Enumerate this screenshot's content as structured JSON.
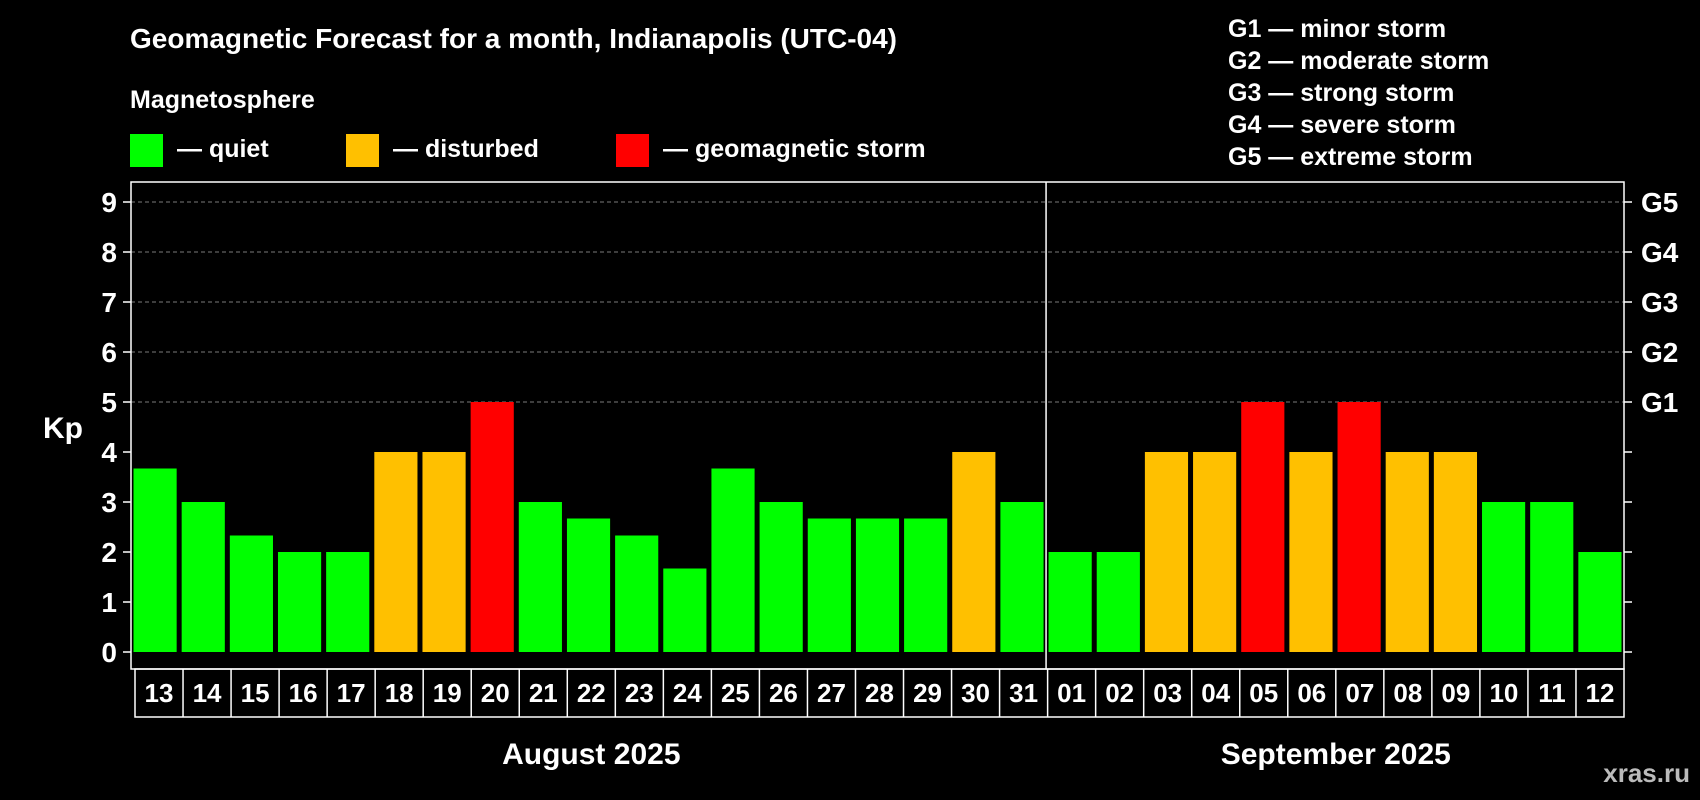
{
  "title": "Geomagnetic Forecast for a month, Indianapolis (UTC-04)",
  "legend": {
    "heading": "Magnetosphere",
    "items": [
      {
        "label": "— quiet",
        "color": "#00ff00"
      },
      {
        "label": "— disturbed",
        "color": "#ffc000"
      },
      {
        "label": "— geomagnetic storm",
        "color": "#ff0000"
      }
    ]
  },
  "storm_scale": [
    "G1 — minor storm",
    "G2 — moderate storm",
    "G3 — strong storm",
    "G4 — severe storm",
    "G5 — extreme storm"
  ],
  "watermark": "xras.ru",
  "chart_data": {
    "type": "bar",
    "ylabel": "Kp",
    "ylim": [
      0,
      9
    ],
    "yticks": [
      "0",
      "1",
      "2",
      "3",
      "4",
      "5",
      "6",
      "7",
      "8",
      "9"
    ],
    "right_ticks": [
      {
        "kp": 5,
        "label": "G1"
      },
      {
        "kp": 6,
        "label": "G2"
      },
      {
        "kp": 7,
        "label": "G3"
      },
      {
        "kp": 8,
        "label": "G4"
      },
      {
        "kp": 9,
        "label": "G5"
      }
    ],
    "grid_levels": [
      5,
      6,
      7,
      8,
      9
    ],
    "categories": [
      "13",
      "14",
      "15",
      "16",
      "17",
      "18",
      "19",
      "20",
      "21",
      "22",
      "23",
      "24",
      "25",
      "26",
      "27",
      "28",
      "29",
      "30",
      "31",
      "01",
      "02",
      "03",
      "04",
      "05",
      "06",
      "07",
      "08",
      "09",
      "10",
      "11",
      "12"
    ],
    "values": [
      3.67,
      3,
      2.33,
      2,
      2,
      4,
      4,
      5,
      3,
      2.67,
      2.33,
      1.67,
      3.67,
      3,
      2.67,
      2.67,
      2.67,
      4,
      3,
      2,
      2,
      4,
      4,
      5,
      4,
      5,
      4,
      4,
      3,
      3,
      2
    ],
    "colors": [
      "#00ff00",
      "#00ff00",
      "#00ff00",
      "#00ff00",
      "#00ff00",
      "#ffc000",
      "#ffc000",
      "#ff0000",
      "#00ff00",
      "#00ff00",
      "#00ff00",
      "#00ff00",
      "#00ff00",
      "#00ff00",
      "#00ff00",
      "#00ff00",
      "#00ff00",
      "#ffc000",
      "#00ff00",
      "#00ff00",
      "#00ff00",
      "#ffc000",
      "#ffc000",
      "#ff0000",
      "#ffc000",
      "#ff0000",
      "#ffc000",
      "#ffc000",
      "#00ff00",
      "#00ff00",
      "#00ff00"
    ],
    "months": [
      {
        "label": "August 2025",
        "count": 19
      },
      {
        "label": "September 2025",
        "count": 12
      }
    ]
  }
}
